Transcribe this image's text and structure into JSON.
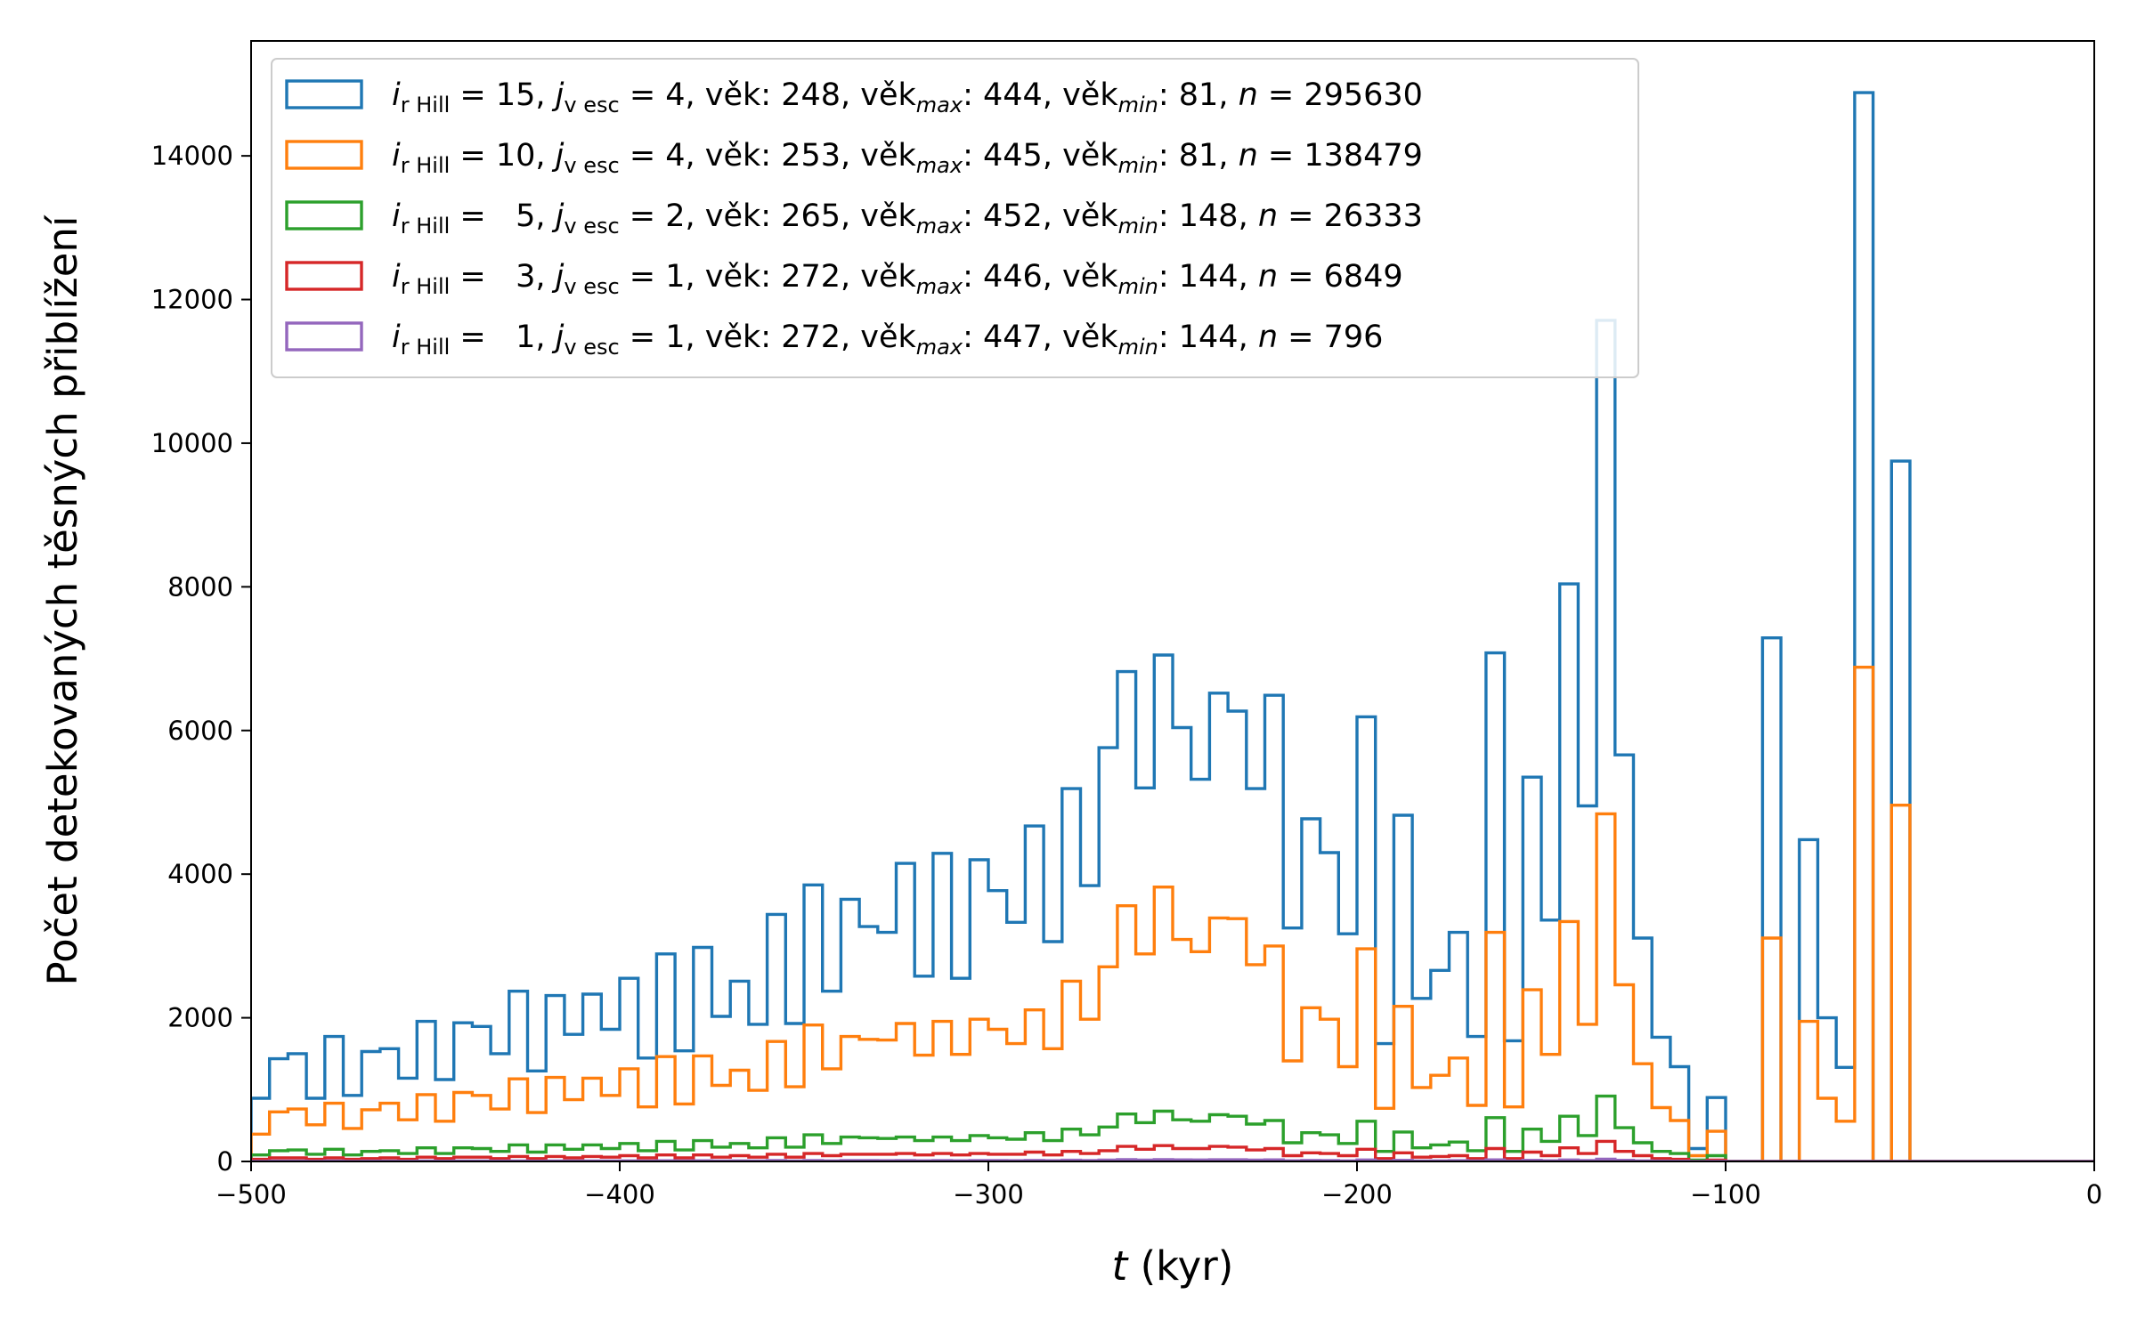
{
  "chart_data": {
    "type": "histogram",
    "title": "",
    "xlabel": {
      "var": "t",
      "unit": " (kyr)"
    },
    "ylabel": "Počet detekovaných těsných přiblížení",
    "xlim": [
      -500,
      0
    ],
    "ylim": [
      0,
      15600
    ],
    "xticks": [
      -500,
      -400,
      -300,
      -200,
      -100,
      0
    ],
    "xtick_labels": [
      "−500",
      "−400",
      "−300",
      "−200",
      "−100",
      "0"
    ],
    "yticks": [
      0,
      2000,
      4000,
      6000,
      8000,
      10000,
      12000,
      14000
    ],
    "ytick_labels": [
      "0",
      "2000",
      "4000",
      "6000",
      "8000",
      "10000",
      "12000",
      "14000"
    ],
    "grid": false,
    "legend_position": "upper-left",
    "histtype": "step",
    "bin_start": -500,
    "bin_width": 5,
    "bins_note": "",
    "series": [
      {
        "name": "i_rHill = 15, j_vesc = 4",
        "color": "#1f77b4",
        "legend": {
          "i": "15",
          "j": "4",
          "age": "248",
          "age_max": "444",
          "age_min": "81",
          "n": "295630"
        },
        "values": [
          880,
          1430,
          1500,
          880,
          1740,
          920,
          1530,
          1570,
          1160,
          1950,
          1140,
          1930,
          1880,
          1500,
          2370,
          1260,
          2310,
          1770,
          2330,
          1840,
          2550,
          1440,
          2890,
          1540,
          2980,
          2020,
          2510,
          1910,
          3440,
          1920,
          3850,
          2370,
          3650,
          3270,
          3190,
          4150,
          2580,
          4290,
          2550,
          4200,
          3770,
          3330,
          4670,
          3060,
          5190,
          3840,
          5760,
          6820,
          5200,
          7050,
          6040,
          5320,
          6520,
          6270,
          5190,
          6490,
          3250,
          4770,
          4300,
          3170,
          6190,
          1640,
          4820,
          2270,
          2660,
          3190,
          1740,
          7080,
          1680,
          5350,
          3360,
          8040,
          4950,
          11710,
          5660,
          3110,
          1730,
          1320,
          180,
          890,
          0,
          0,
          7290,
          0,
          4480,
          2000,
          1310,
          14880,
          0,
          9750,
          0,
          0,
          0,
          0,
          0,
          0,
          0,
          0,
          0,
          0
        ]
      },
      {
        "name": "i_rHill = 10, j_vesc = 4",
        "color": "#ff7f0e",
        "legend": {
          "i": "10",
          "j": "4",
          "age": "253",
          "age_max": "445",
          "age_min": "81",
          "n": "138479"
        },
        "values": [
          380,
          690,
          730,
          510,
          810,
          460,
          720,
          810,
          580,
          930,
          560,
          960,
          920,
          730,
          1150,
          680,
          1170,
          860,
          1160,
          920,
          1290,
          760,
          1460,
          800,
          1470,
          1060,
          1270,
          990,
          1670,
          1040,
          1900,
          1290,
          1740,
          1700,
          1690,
          1920,
          1480,
          1950,
          1490,
          1980,
          1840,
          1640,
          2110,
          1570,
          2510,
          1980,
          2710,
          3560,
          2890,
          3820,
          3090,
          2920,
          3390,
          3380,
          2740,
          3000,
          1400,
          2140,
          1980,
          1320,
          2960,
          740,
          2160,
          1030,
          1200,
          1440,
          780,
          3190,
          760,
          2390,
          1490,
          3340,
          1910,
          4840,
          2460,
          1360,
          750,
          570,
          80,
          420,
          0,
          0,
          3110,
          0,
          1950,
          880,
          560,
          6880,
          0,
          4960,
          0,
          0,
          0,
          0,
          0,
          0,
          0,
          0,
          0,
          0
        ]
      },
      {
        "name": "i_rHill = 5, j_vesc = 2",
        "color": "#2ca02c",
        "legend": {
          "i": "5",
          "j": "2",
          "age": "265",
          "age_max": "452",
          "age_min": "148",
          "n": "26333"
        },
        "values": [
          90,
          150,
          160,
          100,
          170,
          90,
          140,
          150,
          110,
          190,
          110,
          190,
          180,
          140,
          230,
          130,
          230,
          170,
          230,
          180,
          250,
          150,
          280,
          160,
          290,
          200,
          250,
          190,
          330,
          200,
          370,
          250,
          340,
          330,
          320,
          340,
          290,
          340,
          290,
          360,
          330,
          310,
          400,
          290,
          450,
          370,
          480,
          660,
          540,
          700,
          580,
          560,
          650,
          630,
          520,
          570,
          260,
          400,
          370,
          250,
          560,
          140,
          410,
          190,
          230,
          270,
          150,
          610,
          140,
          450,
          280,
          630,
          360,
          910,
          470,
          260,
          140,
          110,
          20,
          80,
          0,
          0,
          0,
          0,
          0,
          0,
          0,
          0,
          0,
          0,
          0,
          0,
          0,
          0,
          0,
          0,
          0,
          0,
          0,
          0
        ]
      },
      {
        "name": "i_rHill = 3, j_vesc = 1",
        "color": "#d62728",
        "legend": {
          "i": "3",
          "j": "1",
          "age": "272",
          "age_max": "446",
          "age_min": "144",
          "n": "6849"
        },
        "values": [
          30,
          50,
          50,
          30,
          50,
          30,
          40,
          50,
          30,
          60,
          40,
          60,
          60,
          40,
          70,
          40,
          70,
          50,
          70,
          60,
          80,
          50,
          90,
          50,
          90,
          60,
          80,
          60,
          100,
          60,
          110,
          80,
          100,
          100,
          100,
          110,
          90,
          110,
          90,
          110,
          100,
          100,
          130,
          90,
          140,
          110,
          150,
          210,
          170,
          220,
          180,
          180,
          210,
          200,
          160,
          180,
          80,
          120,
          110,
          80,
          170,
          40,
          120,
          60,
          70,
          80,
          40,
          180,
          40,
          130,
          80,
          190,
          110,
          280,
          140,
          80,
          40,
          30,
          0,
          20,
          0,
          0,
          0,
          0,
          0,
          0,
          0,
          0,
          0,
          0,
          0,
          0,
          0,
          0,
          0,
          0,
          0,
          0,
          0,
          0
        ]
      },
      {
        "name": "i_rHill = 1, j_vesc = 1",
        "color": "#9467bd",
        "legend": {
          "i": "1",
          "j": "1",
          "age": "272",
          "age_max": "447",
          "age_min": "144",
          "n": "796"
        },
        "values": [
          3,
          5,
          5,
          3,
          6,
          3,
          5,
          5,
          4,
          7,
          4,
          7,
          6,
          5,
          8,
          4,
          8,
          6,
          8,
          6,
          9,
          5,
          10,
          6,
          10,
          7,
          9,
          7,
          12,
          7,
          13,
          9,
          12,
          12,
          11,
          13,
          10,
          13,
          10,
          13,
          12,
          11,
          15,
          11,
          17,
          13,
          19,
          25,
          20,
          26,
          22,
          21,
          24,
          24,
          20,
          22,
          10,
          15,
          14,
          9,
          21,
          5,
          16,
          7,
          9,
          11,
          6,
          22,
          5,
          16,
          10,
          21,
          13,
          32,
          16,
          9,
          5,
          4,
          1,
          3,
          0,
          0,
          0,
          0,
          0,
          0,
          0,
          0,
          0,
          0,
          0,
          0,
          0,
          0,
          0,
          0,
          0,
          0,
          0,
          0
        ]
      }
    ],
    "legend_template": {
      "i_sym": "i",
      "i_sub": "r Hill",
      "j_sym": "j",
      "j_sub": "v esc",
      "age_word": "věk",
      "max_sub": "max",
      "min_sub": "min",
      "n_sym": "n"
    }
  }
}
